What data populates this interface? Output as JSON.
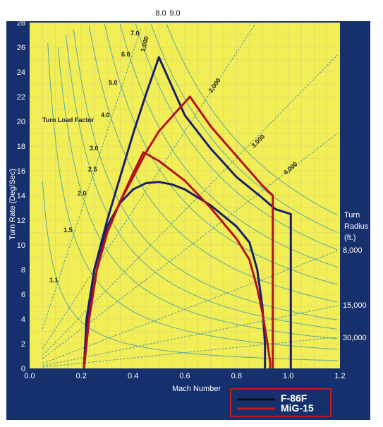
{
  "chart_data": {
    "type": "line",
    "title": "",
    "xlabel": "Mach Number",
    "ylabel": "Turn Rate (Deg/Sec)",
    "xlim": [
      0.0,
      1.2
    ],
    "ylim": [
      0,
      28
    ],
    "x_ticks": [
      "0.0",
      "0.2",
      "0.4",
      "0.6",
      "0.8",
      "1.0",
      "1.2"
    ],
    "y_ticks": [
      "0",
      "2",
      "4",
      "6",
      "8",
      "10",
      "12",
      "14",
      "16",
      "18",
      "20",
      "22",
      "24",
      "26",
      "28"
    ],
    "top_labels": [
      "8.0",
      "9.0"
    ],
    "load_factor_title": "Turn Load Factor",
    "load_factor_labels": [
      "7.0",
      "6.0",
      "5.0",
      "4.0",
      "3.0",
      "2.5",
      "2.0",
      "1.5",
      "1.1"
    ],
    "radius_line_labels": [
      "1,000",
      "2,000",
      "3,000",
      "4,000"
    ],
    "turn_radius_title": [
      "Turn",
      "Radius",
      "(ft.)"
    ],
    "turn_radius_values": [
      "8,000",
      "15,000",
      "30,000"
    ],
    "legend_placement": "bottom-right",
    "grid": true,
    "series": [
      {
        "name": "F-86F",
        "color": "#1a1f6b",
        "segments": [
          {
            "x": [
              0.21,
              0.22,
              0.25,
              0.3,
              0.35,
              0.4,
              0.45,
              0.5,
              0.6,
              0.7,
              0.8,
              0.9,
              0.95,
              1.01,
              1.01,
              1.01
            ],
            "y": [
              0,
              4,
              8,
              12,
              15.5,
              19,
              22.2,
              25.2,
              20.5,
              17.8,
              15.5,
              13.8,
              12.9,
              12.5,
              6,
              0
            ]
          },
          {
            "x": [
              0.21,
              0.22,
              0.25,
              0.3,
              0.35,
              0.4,
              0.45,
              0.5,
              0.55,
              0.6,
              0.7,
              0.8,
              0.85,
              0.88,
              0.9,
              0.91,
              0.91
            ],
            "y": [
              0,
              3.5,
              8,
              11.5,
              13.4,
              14.5,
              15.0,
              15.1,
              14.9,
              14.5,
              13.2,
              11.5,
              10.2,
              8,
              5,
              2,
              0
            ]
          }
        ]
      },
      {
        "name": "MiG-15",
        "color": "#b3121b",
        "segments": [
          {
            "x": [
              0.21,
              0.23,
              0.26,
              0.3,
              0.35,
              0.4,
              0.45,
              0.5,
              0.62,
              0.7,
              0.8,
              0.85,
              0.9,
              0.94,
              0.94,
              0.94
            ],
            "y": [
              0,
              4,
              8,
              11,
              13.5,
              15.5,
              17.5,
              19.2,
              22.0,
              19.6,
              17.2,
              16.0,
              14.8,
              14.0,
              7,
              0
            ]
          },
          {
            "x": [
              0.21,
              0.23,
              0.26,
              0.3,
              0.35,
              0.4,
              0.44,
              0.5,
              0.6,
              0.7,
              0.8,
              0.85,
              0.88,
              0.9,
              0.92,
              0.93,
              0.93
            ],
            "y": [
              0,
              4,
              8,
              11,
              13.5,
              15.8,
              17.5,
              16.8,
              15.2,
              13.0,
              10.5,
              8.8,
              6.5,
              4.5,
              2,
              0.5,
              0
            ]
          }
        ]
      }
    ],
    "load_factor_curves": [
      1.1,
      1.5,
      2.0,
      2.5,
      3.0,
      4.0,
      5.0,
      6.0,
      7.0,
      8.0,
      9.0
    ],
    "radius_curves_ft": [
      1000,
      2000,
      3000,
      4000,
      8000,
      15000,
      30000
    ]
  }
}
